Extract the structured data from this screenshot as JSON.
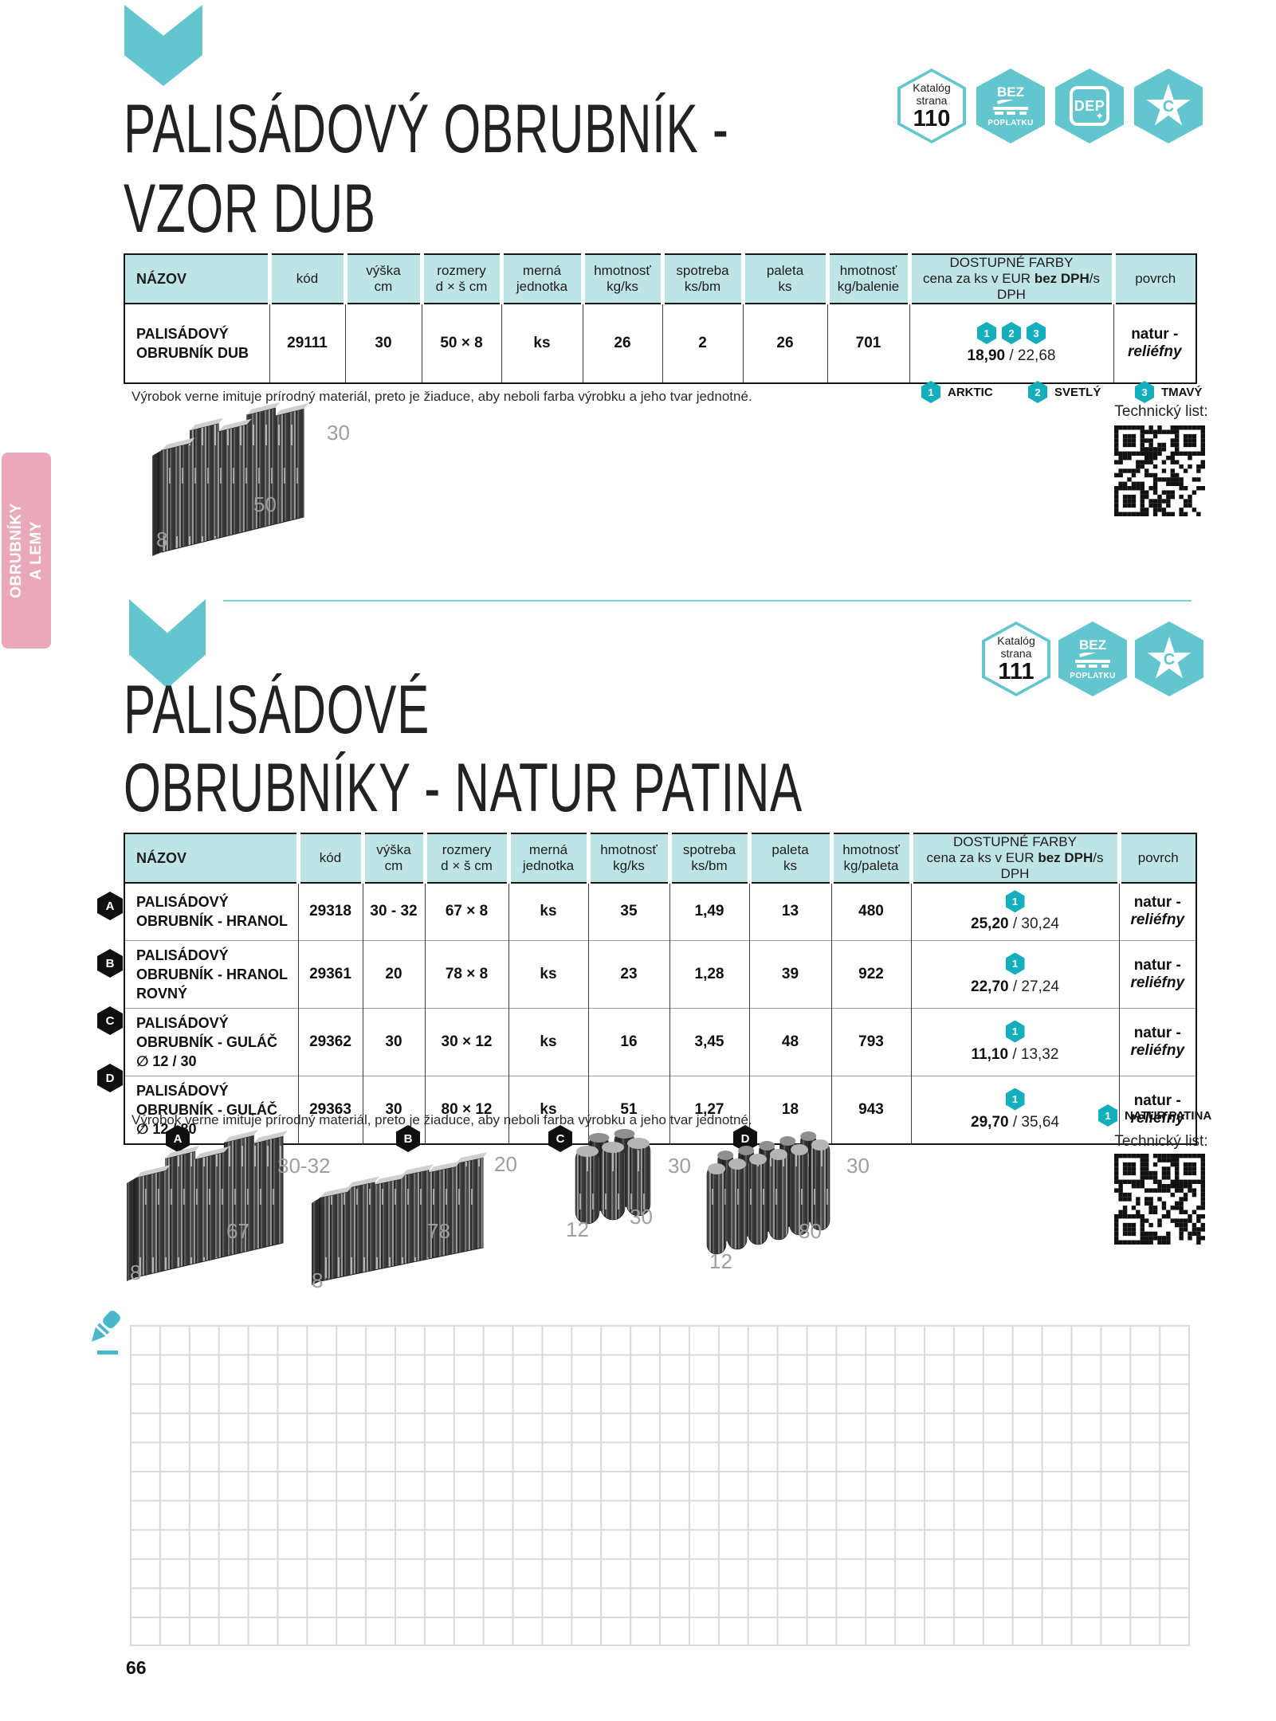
{
  "page_number": "66",
  "sidebar": {
    "line1": "OBRUBNÍKY",
    "line2": "A LEMY"
  },
  "techlist_label": "Technický list:",
  "note": "Výrobok verne imituje prírodný materiál, preto je žiaduce, aby neboli farba výrobku a jeho tvar jednotné.",
  "colors": {
    "teal": "#63c5cd",
    "teal_dark": "#14aebc",
    "header_bg": "#bfe4e6",
    "pink": "#e9a9bb"
  },
  "section1": {
    "title_line1": "PALISÁDOVÝ OBRUBNÍK -",
    "title_line2": "VZOR DUB",
    "badges": {
      "katalog1": "Katalóg",
      "katalog2": "strana",
      "page": "110",
      "bez": "BEZ",
      "poplatku": "POPLATKU",
      "dep": "DEP",
      "star_letter": "C"
    },
    "headers": {
      "nazov": "NÁZOV",
      "kod": "kód",
      "vyska1": "výška",
      "vyska2": "cm",
      "rozmery1": "rozmery",
      "rozmery2": "d × š cm",
      "merna1": "merná",
      "merna2": "jednotka",
      "hmot1": "hmotnosť",
      "hmot2": "kg/ks",
      "spotreba1": "spotreba",
      "spotreba2": "ks/bm",
      "paleta1": "paleta",
      "paleta2": "ks",
      "hmotb1": "hmotnosť",
      "hmotb2": "kg/balenie",
      "farby1": "DOSTUPNÉ FARBY",
      "farby2a": "cena za ks v EUR ",
      "farby2b": "bez DPH",
      "farby2c": "/s DPH",
      "povrch": "povrch"
    },
    "row": {
      "nazov": "PALISÁDOVÝ OBRUBNÍK DUB",
      "kod": "29111",
      "vyska": "30",
      "rozmery": "50 × 8",
      "merna": "ks",
      "hmot": "26",
      "spotreba": "2",
      "paleta": "26",
      "hmotb": "701",
      "c1": "1",
      "c2": "2",
      "c3": "3",
      "price": "18,90",
      "price2": " / 22,68",
      "povrch1": "natur -",
      "povrch2": "reliéfny"
    },
    "legend": [
      {
        "n": "1",
        "label": "ARKTIC"
      },
      {
        "n": "2",
        "label": "SVETLÝ"
      },
      {
        "n": "3",
        "label": "TMAVÝ"
      }
    ],
    "dims": {
      "h": "30",
      "l": "50",
      "d": "8"
    }
  },
  "section2": {
    "title_line1": "PALISÁDOVÉ",
    "title_line2": "OBRUBNÍKY - NATUR PATINA",
    "badges": {
      "katalog1": "Katalóg",
      "katalog2": "strana",
      "page": "111",
      "bez": "BEZ",
      "poplatku": "POPLATKU",
      "star_letter": "C"
    },
    "headers": {
      "nazov": "NÁZOV",
      "kod": "kód",
      "vyska1": "výška",
      "vyska2": "cm",
      "rozmery1": "rozmery",
      "rozmery2": "d × š cm",
      "merna1": "merná",
      "merna2": "jednotka",
      "hmot1": "hmotnosť",
      "hmot2": "kg/ks",
      "spotreba1": "spotreba",
      "spotreba2": "ks/bm",
      "paleta1": "paleta",
      "paleta2": "ks",
      "hmotb1": "hmotnosť",
      "hmotb2": "kg/paleta",
      "farby1": "DOSTUPNÉ FARBY",
      "farby2a": "cena za ks v EUR ",
      "farby2b": "bez DPH",
      "farby2c": "/s DPH",
      "povrch": "povrch"
    },
    "rows": [
      {
        "letter": "A",
        "nazov": "PALISÁDOVÝ OBRUBNÍK - HRANOL",
        "kod": "29318",
        "vyska": "30 - 32",
        "rozmery": "67 × 8",
        "merna": "ks",
        "hmot": "35",
        "spotreba": "1,49",
        "paleta": "13",
        "hmotb": "480",
        "c1": "1",
        "price": "25,20",
        "price2": " / 30,24",
        "povrch1": "natur -",
        "povrch2": "reliéfny"
      },
      {
        "letter": "B",
        "nazov": "PALISÁDOVÝ OBRUBNÍK - HRANOL ROVNÝ",
        "kod": "29361",
        "vyska": "20",
        "rozmery": "78 × 8",
        "merna": "ks",
        "hmot": "23",
        "spotreba": "1,28",
        "paleta": "39",
        "hmotb": "922",
        "c1": "1",
        "price": "22,70",
        "price2": " / 27,24",
        "povrch1": "natur -",
        "povrch2": "reliéfny"
      },
      {
        "letter": "C",
        "nazov": "PALISÁDOVÝ OBRUBNÍK - GULÁČ ∅ 12 / 30",
        "kod": "29362",
        "vyska": "30",
        "rozmery": "30 × 12",
        "merna": "ks",
        "hmot": "16",
        "spotreba": "3,45",
        "paleta": "48",
        "hmotb": "793",
        "c1": "1",
        "price": "11,10",
        "price2": " / 13,32",
        "povrch1": "natur -",
        "povrch2": "reliéfny"
      },
      {
        "letter": "D",
        "nazov": "PALISÁDOVÝ OBRUBNÍK - GULÁČ ∅ 12 / 80",
        "kod": "29363",
        "vyska": "30",
        "rozmery": "80 × 12",
        "merna": "ks",
        "hmot": "51",
        "spotreba": "1,27",
        "paleta": "18",
        "hmotb": "943",
        "c1": "1",
        "price": "29,70",
        "price2": " / 35,64",
        "povrch1": "natur -",
        "povrch2": "reliéfny"
      }
    ],
    "legend": [
      {
        "n": "1",
        "label": "NATUR PATINA"
      }
    ],
    "dims": {
      "A": {
        "h": "30-32",
        "l": "67",
        "d": "8"
      },
      "B": {
        "h": "20",
        "l": "78",
        "d": "8"
      },
      "C": {
        "h": "30",
        "l": "30",
        "d": "12"
      },
      "D": {
        "h": "30",
        "l": "80",
        "d": "12"
      }
    }
  }
}
